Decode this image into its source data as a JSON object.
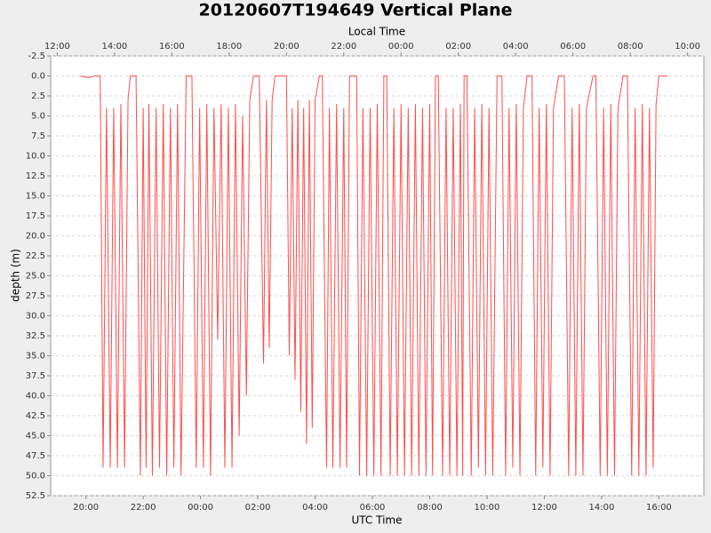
{
  "chart_data": {
    "type": "line",
    "title": "20120607T194649 Vertical Plane",
    "xlabel": "UTC Time",
    "x2label": "Local Time",
    "ylabel": "depth (m)",
    "color": "#ff4d4d",
    "grid": true,
    "y_inverted": true,
    "xlim": [
      18.77,
      41.57
    ],
    "ylim": [
      -2.5,
      52.5
    ],
    "xticks": [
      {
        "value": 20,
        "label": "20:00"
      },
      {
        "value": 22,
        "label": "22:00"
      },
      {
        "value": 24,
        "label": "00:00"
      },
      {
        "value": 26,
        "label": "02:00"
      },
      {
        "value": 28,
        "label": "04:00"
      },
      {
        "value": 30,
        "label": "06:00"
      },
      {
        "value": 32,
        "label": "08:00"
      },
      {
        "value": 34,
        "label": "10:00"
      },
      {
        "value": 36,
        "label": "12:00"
      },
      {
        "value": 38,
        "label": "14:00"
      },
      {
        "value": 40,
        "label": "16:00"
      }
    ],
    "x2ticks": [
      {
        "value": 19,
        "label": "12:00"
      },
      {
        "value": 21,
        "label": "14:00"
      },
      {
        "value": 23,
        "label": "16:00"
      },
      {
        "value": 25,
        "label": "18:00"
      },
      {
        "value": 27,
        "label": "20:00"
      },
      {
        "value": 29,
        "label": "22:00"
      },
      {
        "value": 31,
        "label": "00:00"
      },
      {
        "value": 33,
        "label": "02:00"
      },
      {
        "value": 35,
        "label": "04:00"
      },
      {
        "value": 37,
        "label": "06:00"
      },
      {
        "value": 39,
        "label": "08:00"
      },
      {
        "value": 41,
        "label": "10:00"
      }
    ],
    "yticks": [
      -2.5,
      {
        "value": 0,
        "label": "0.0"
      },
      2.5,
      {
        "value": 5,
        "label": "5.0"
      },
      7.5,
      {
        "value": 10,
        "label": "10.0"
      },
      12.5,
      {
        "value": 15,
        "label": "15.0"
      },
      17.5,
      {
        "value": 20,
        "label": "20.0"
      },
      22.5,
      {
        "value": 25,
        "label": "25.0"
      },
      27.5,
      {
        "value": 30,
        "label": "30.0"
      },
      32.5,
      {
        "value": 35,
        "label": "35.0"
      },
      37.5,
      {
        "value": 40,
        "label": "40.0"
      },
      42.5,
      {
        "value": 45,
        "label": "45.0"
      },
      47.5,
      {
        "value": 50,
        "label": "50.0"
      },
      52.5
    ],
    "x": [
      19.8,
      20.1,
      20.3,
      20.5,
      20.6,
      20.72,
      20.85,
      20.97,
      21.1,
      21.22,
      21.35,
      21.47,
      21.55,
      21.75,
      21.9,
      22.0,
      22.1,
      22.2,
      22.32,
      22.45,
      22.57,
      22.7,
      22.82,
      22.95,
      23.07,
      23.2,
      23.32,
      23.5,
      23.7,
      23.85,
      23.97,
      24.1,
      24.22,
      24.35,
      24.47,
      24.6,
      24.72,
      24.85,
      24.97,
      25.1,
      25.22,
      25.35,
      25.47,
      25.6,
      25.72,
      25.85,
      26.05,
      26.2,
      26.3,
      26.4,
      26.5,
      26.6,
      27.0,
      27.1,
      27.2,
      27.3,
      27.4,
      27.5,
      27.6,
      27.7,
      27.8,
      27.9,
      28.0,
      28.15,
      28.25,
      28.4,
      28.5,
      28.62,
      28.75,
      28.87,
      29.0,
      29.1,
      29.2,
      29.45,
      29.55,
      29.67,
      29.8,
      29.92,
      30.05,
      30.17,
      30.3,
      30.4,
      30.5,
      30.62,
      30.75,
      30.87,
      31.0,
      31.12,
      31.25,
      31.37,
      31.5,
      31.62,
      31.75,
      31.87,
      32.0,
      32.1,
      32.2,
      32.3,
      32.45,
      32.57,
      32.7,
      32.82,
      32.95,
      33.07,
      33.15,
      33.2,
      33.3,
      33.45,
      33.57,
      33.7,
      33.82,
      33.95,
      34.07,
      34.2,
      34.35,
      34.52,
      34.65,
      34.77,
      34.9,
      35.02,
      35.15,
      35.27,
      35.4,
      35.57,
      35.7,
      35.82,
      35.95,
      36.07,
      36.2,
      36.32,
      36.5,
      36.7,
      36.85,
      36.97,
      37.1,
      37.22,
      37.35,
      37.47,
      37.7,
      37.8,
      37.95,
      38.07,
      38.2,
      38.32,
      38.45,
      38.57,
      38.75,
      38.9,
      39.05,
      39.17,
      39.3,
      39.42,
      39.55,
      39.67,
      39.8,
      39.9,
      40.0,
      40.3
    ],
    "values": [
      0,
      0.2,
      0,
      0,
      49,
      4,
      49,
      4,
      49,
      3.5,
      49,
      3,
      0,
      0,
      50,
      4,
      49,
      3.5,
      50,
      4,
      49,
      3.5,
      50,
      4,
      49,
      3.5,
      50,
      0,
      0,
      49,
      4,
      49,
      3.5,
      50,
      4,
      33,
      3.5,
      49,
      4,
      49,
      3.5,
      45,
      5,
      40,
      3,
      0,
      0,
      36,
      3,
      34,
      3,
      0,
      0,
      35,
      4,
      38,
      3,
      42,
      4,
      46,
      3,
      44,
      3,
      0,
      0,
      49,
      4,
      49,
      3.5,
      49,
      4,
      49,
      0,
      0,
      50,
      4,
      50,
      4,
      50,
      3.5,
      50,
      0,
      0,
      50,
      4,
      50,
      3.5,
      50,
      4,
      50,
      3.5,
      50,
      4,
      50,
      3.5,
      50,
      0,
      0,
      50,
      4,
      50,
      4,
      50,
      3.5,
      50,
      0,
      0,
      50,
      4,
      49,
      3.5,
      50,
      4,
      50,
      0,
      0,
      50,
      4,
      49,
      3.5,
      50,
      4,
      0,
      0,
      50,
      4,
      49,
      3.5,
      50,
      4,
      0,
      0,
      50,
      4,
      50,
      3.5,
      50,
      4,
      0,
      0,
      50,
      4,
      50,
      3.5,
      50,
      4,
      0,
      0,
      50,
      4,
      50,
      3.5,
      50,
      4,
      49,
      3.5,
      0,
      0
    ]
  }
}
